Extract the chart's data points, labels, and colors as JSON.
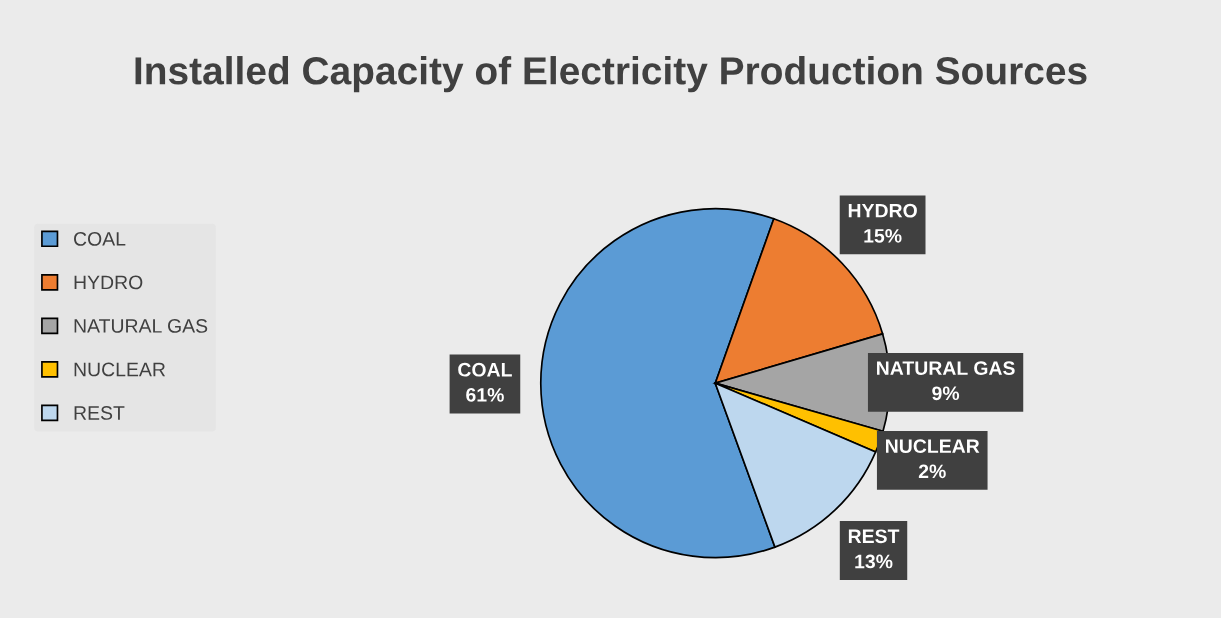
{
  "chart_data": {
    "type": "pie",
    "title": "Installed Capacity of Electricity Production Sources",
    "categories": [
      "COAL",
      "HYDRO",
      "NATURAL GAS",
      "NUCLEAR",
      "REST"
    ],
    "values": [
      61,
      15,
      9,
      2,
      13
    ],
    "value_labels": [
      "61%",
      "15%",
      "9%",
      "2%",
      "13%"
    ],
    "colors": [
      "#5b9bd5",
      "#ed7d31",
      "#a5a5a5",
      "#ffc000",
      "#bdd7ee"
    ],
    "legend": "left"
  }
}
